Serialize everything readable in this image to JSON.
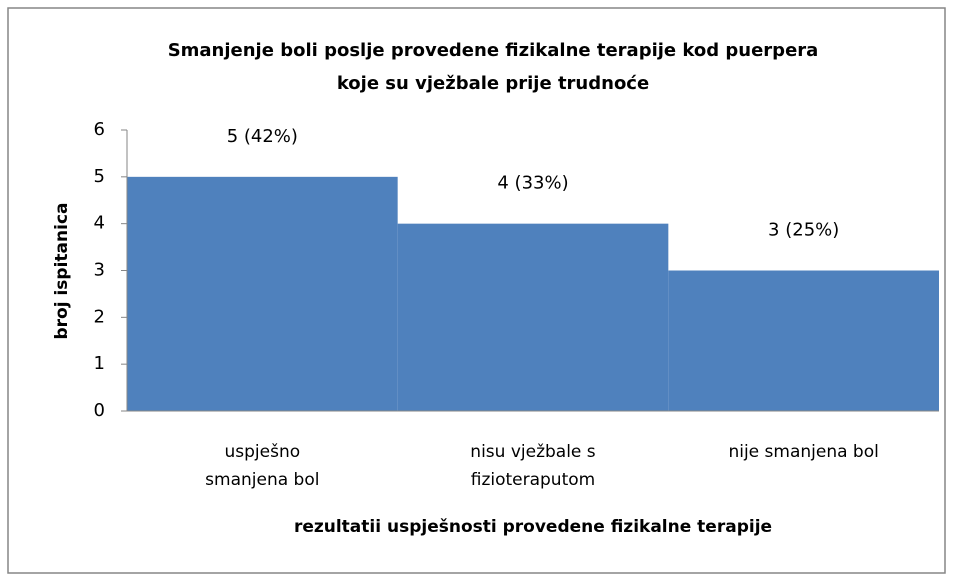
{
  "chart_data": {
    "type": "bar",
    "title": [
      "Smanjenje boli poslje provedene fizikalne terapije kod puerpera",
      "koje su vježbale prije  trudnoće"
    ],
    "categories": [
      "uspješno smanjena bol",
      "nisu vježbale s fizioteraputom",
      "nije smanjena bol"
    ],
    "values": [
      5,
      4,
      3
    ],
    "value_labels": [
      "5 (42%)",
      "4 (33%)",
      "3 (25%)"
    ],
    "color": "#4f81bd",
    "ylim": [
      0,
      6
    ],
    "yticks": [
      0,
      1,
      2,
      3,
      4,
      5,
      6
    ],
    "xlabel": "rezultatii uspješnosti provedene fizikalne terapije",
    "ylabel": "broj ispitanica",
    "grid": false
  }
}
